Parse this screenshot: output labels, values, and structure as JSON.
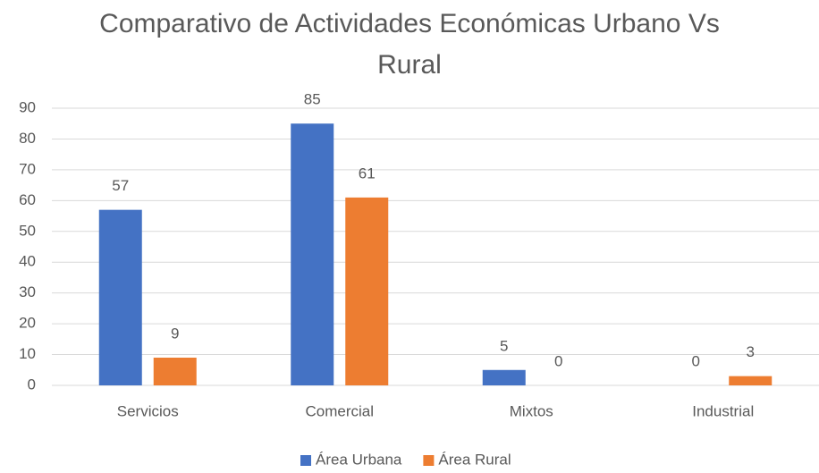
{
  "chart_data": {
    "type": "bar",
    "title": "Comparativo de Actividades Económicas Urbano Vs Rural",
    "categories": [
      "Servicios",
      "Comercial",
      "Mixtos",
      "Industrial"
    ],
    "series": [
      {
        "name": "Área Urbana",
        "color": "#4472c4",
        "values": [
          57,
          85,
          5,
          0
        ]
      },
      {
        "name": "Área Rural",
        "color": "#ed7d31",
        "values": [
          9,
          61,
          0,
          3
        ]
      }
    ],
    "ylim": [
      0,
      90
    ],
    "yticks": [
      0,
      10,
      20,
      30,
      40,
      50,
      60,
      70,
      80,
      90
    ],
    "grid": true,
    "legend": "bottom"
  }
}
